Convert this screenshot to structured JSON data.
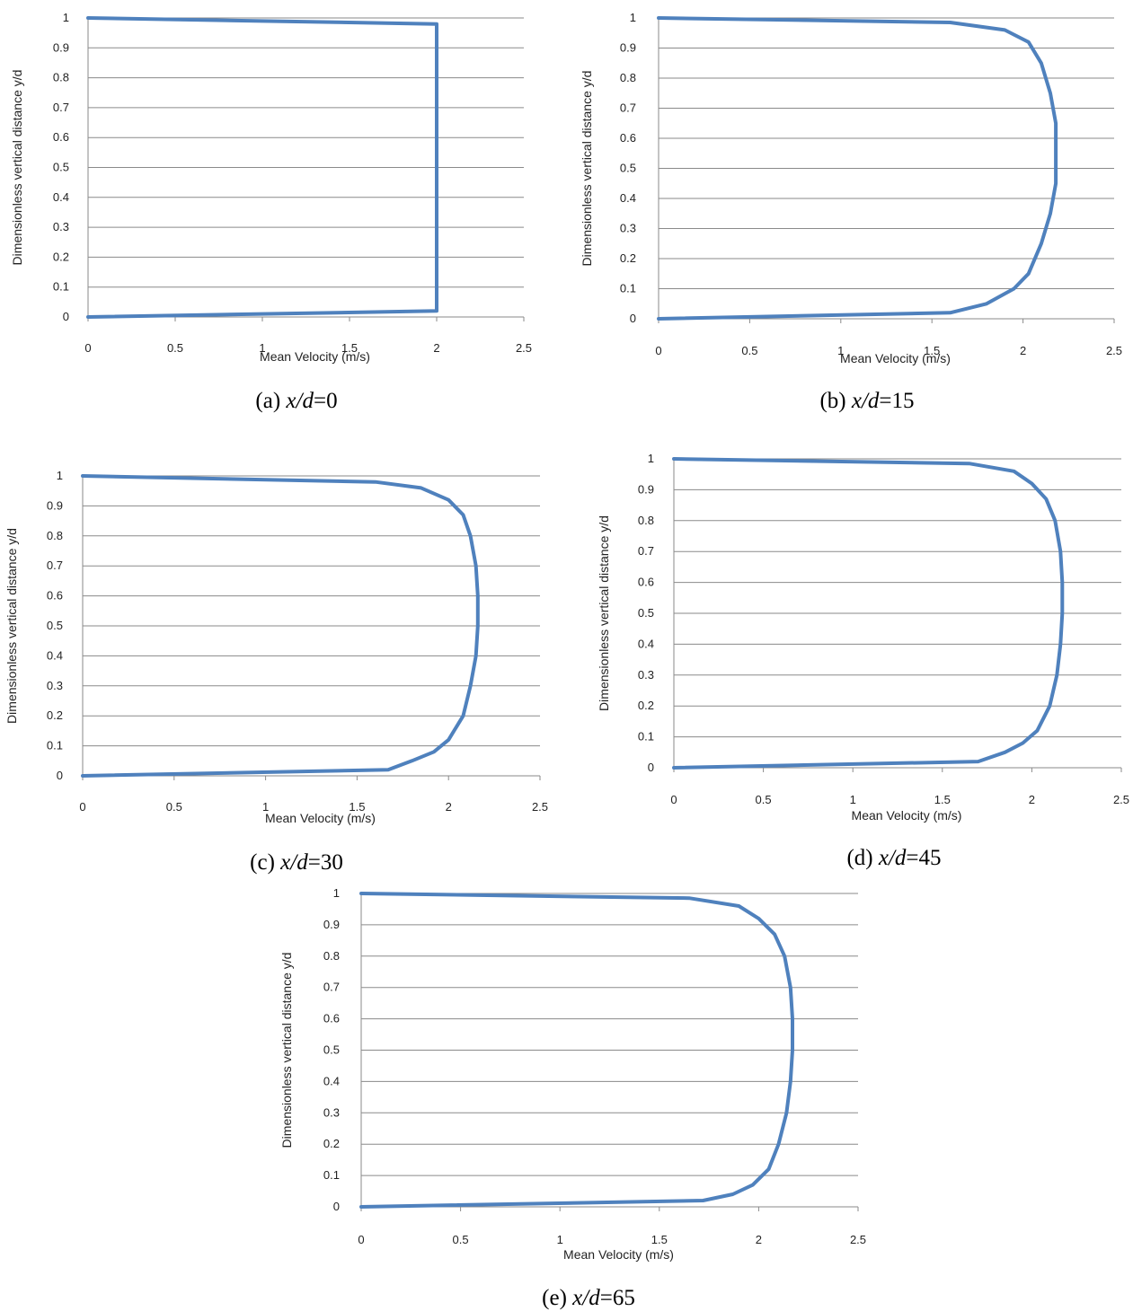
{
  "chart_data": [
    {
      "type": "line",
      "panel_label": "(a)",
      "caption_var": "x/d",
      "caption_value": "=0",
      "xlabel": "Mean Velocity (m/s)",
      "ylabel": "Dimensionless vertical distance y/d",
      "xlim": [
        0,
        2.5
      ],
      "ylim": [
        0,
        1
      ],
      "x_ticks": [
        "0",
        "0.5",
        "1",
        "1.5",
        "2",
        "2.5"
      ],
      "y_ticks": [
        "0",
        "0.1",
        "0.2",
        "0.3",
        "0.4",
        "0.5",
        "0.6",
        "0.7",
        "0.8",
        "0.9",
        "1"
      ],
      "grid": true,
      "color": "#4f81bd",
      "series": [
        {
          "x": [
            0,
            2.0,
            2.0,
            0
          ],
          "y": [
            0,
            0.02,
            0.98,
            1.0
          ]
        }
      ]
    },
    {
      "type": "line",
      "panel_label": "(b)",
      "caption_var": "x/d",
      "caption_value": "=15",
      "xlabel": "Mean Velocity (m/s)",
      "ylabel": "Dimensionless vertical distance y/d",
      "xlim": [
        0,
        2.5
      ],
      "ylim": [
        0,
        1
      ],
      "x_ticks": [
        "0",
        "0.5",
        "1",
        "1.5",
        "2",
        "2.5"
      ],
      "y_ticks": [
        "0",
        "0.1",
        "0.2",
        "0.3",
        "0.4",
        "0.5",
        "0.6",
        "0.7",
        "0.8",
        "0.9",
        "1"
      ],
      "grid": true,
      "color": "#4f81bd",
      "series": [
        {
          "x": [
            0,
            1.6,
            1.8,
            1.95,
            2.03,
            2.1,
            2.15,
            2.18,
            2.18,
            2.18,
            2.15,
            2.1,
            2.03,
            1.9,
            1.6,
            0
          ],
          "y": [
            0,
            0.02,
            0.05,
            0.1,
            0.15,
            0.25,
            0.35,
            0.45,
            0.55,
            0.65,
            0.75,
            0.85,
            0.92,
            0.96,
            0.985,
            1.0
          ]
        }
      ]
    },
    {
      "type": "line",
      "panel_label": "(c)",
      "caption_var": "x/d",
      "caption_value": "=30",
      "xlabel": "Mean Velocity (m/s)",
      "ylabel": "Dimensionless vertical distance y/d",
      "xlim": [
        0,
        2.5
      ],
      "ylim": [
        0,
        1
      ],
      "x_ticks": [
        "0",
        "0.5",
        "1",
        "1.5",
        "2",
        "2.5"
      ],
      "y_ticks": [
        "0",
        "0.1",
        "0.2",
        "0.3",
        "0.4",
        "0.5",
        "0.6",
        "0.7",
        "0.8",
        "0.9",
        "1"
      ],
      "grid": true,
      "color": "#4f81bd",
      "series": [
        {
          "x": [
            0,
            1.67,
            1.8,
            1.92,
            2.0,
            2.08,
            2.12,
            2.15,
            2.16,
            2.16,
            2.15,
            2.12,
            2.08,
            2.0,
            1.85,
            1.6,
            0
          ],
          "y": [
            0,
            0.02,
            0.05,
            0.08,
            0.12,
            0.2,
            0.3,
            0.4,
            0.5,
            0.6,
            0.7,
            0.8,
            0.87,
            0.92,
            0.96,
            0.98,
            1.0
          ]
        }
      ]
    },
    {
      "type": "line",
      "panel_label": "(d)",
      "caption_var": "x/d",
      "caption_value": "=45",
      "xlabel": "Mean Velocity (m/s)",
      "ylabel": "Dimensionless vertical distance y/d",
      "xlim": [
        0,
        2.5
      ],
      "ylim": [
        0,
        1
      ],
      "x_ticks": [
        "0",
        "0.5",
        "1",
        "1.5",
        "2",
        "2.5"
      ],
      "y_ticks": [
        "0",
        "0.1",
        "0.2",
        "0.3",
        "0.4",
        "0.5",
        "0.6",
        "0.7",
        "0.8",
        "0.9",
        "1"
      ],
      "grid": true,
      "color": "#4f81bd",
      "series": [
        {
          "x": [
            0,
            1.7,
            1.85,
            1.95,
            2.03,
            2.1,
            2.14,
            2.16,
            2.17,
            2.17,
            2.16,
            2.13,
            2.08,
            2.0,
            1.9,
            1.65,
            0
          ],
          "y": [
            0,
            0.02,
            0.05,
            0.08,
            0.12,
            0.2,
            0.3,
            0.4,
            0.5,
            0.6,
            0.7,
            0.8,
            0.87,
            0.92,
            0.96,
            0.985,
            1.0
          ]
        }
      ]
    },
    {
      "type": "line",
      "panel_label": "(e)",
      "caption_var": "x/d",
      "caption_value": "=65",
      "xlabel": "Mean Velocity (m/s)",
      "ylabel": "Dimensionless vertical distance y/d",
      "xlim": [
        0,
        2.5
      ],
      "ylim": [
        0,
        1
      ],
      "x_ticks": [
        "0",
        "0.5",
        "1",
        "1.5",
        "2",
        "2.5"
      ],
      "y_ticks": [
        "0",
        "0.1",
        "0.2",
        "0.3",
        "0.4",
        "0.5",
        "0.6",
        "0.7",
        "0.8",
        "0.9",
        "1"
      ],
      "grid": true,
      "color": "#4f81bd",
      "series": [
        {
          "x": [
            0,
            1.72,
            1.87,
            1.97,
            2.05,
            2.1,
            2.14,
            2.16,
            2.17,
            2.17,
            2.16,
            2.13,
            2.08,
            2.0,
            1.9,
            1.65,
            0
          ],
          "y": [
            0,
            0.02,
            0.04,
            0.07,
            0.12,
            0.2,
            0.3,
            0.4,
            0.5,
            0.6,
            0.7,
            0.8,
            0.87,
            0.92,
            0.96,
            0.985,
            1.0
          ]
        }
      ]
    }
  ]
}
